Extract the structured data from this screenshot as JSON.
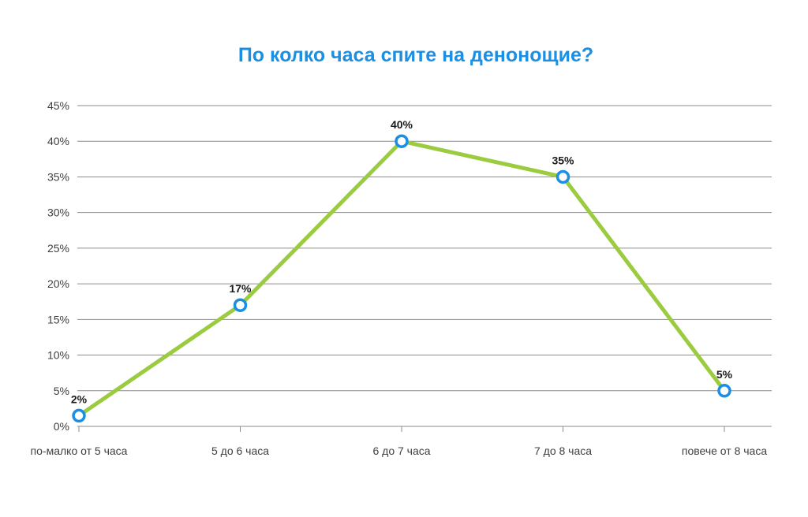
{
  "colors": {
    "title": "#1a8fe3",
    "line": "#9bcb3f",
    "marker_stroke": "#1a8fe3",
    "marker_fill": "#ffffff",
    "grid": "#8c8c8c",
    "axis": "#8c8c8c"
  },
  "chart_data": {
    "type": "line",
    "title": "По колко часа спите на денонощие?",
    "xlabel": "",
    "ylabel": "",
    "categories": [
      "по-малко от 5 часа",
      "5 до 6 часа",
      "6 до 7 часа",
      "7 до 8 часа",
      "повече от 8 часа"
    ],
    "values": [
      1.5,
      17,
      40,
      35,
      5
    ],
    "data_labels": [
      "2%",
      "17%",
      "40%",
      "35%",
      "5%"
    ],
    "ylim": [
      0,
      45
    ],
    "yticks": [
      0,
      5,
      10,
      15,
      20,
      25,
      30,
      35,
      40,
      45
    ],
    "ytick_labels": [
      "0%",
      "5%",
      "10%",
      "15%",
      "20%",
      "25%",
      "30%",
      "35%",
      "40%",
      "45%"
    ],
    "grid": true,
    "legend": "none"
  }
}
